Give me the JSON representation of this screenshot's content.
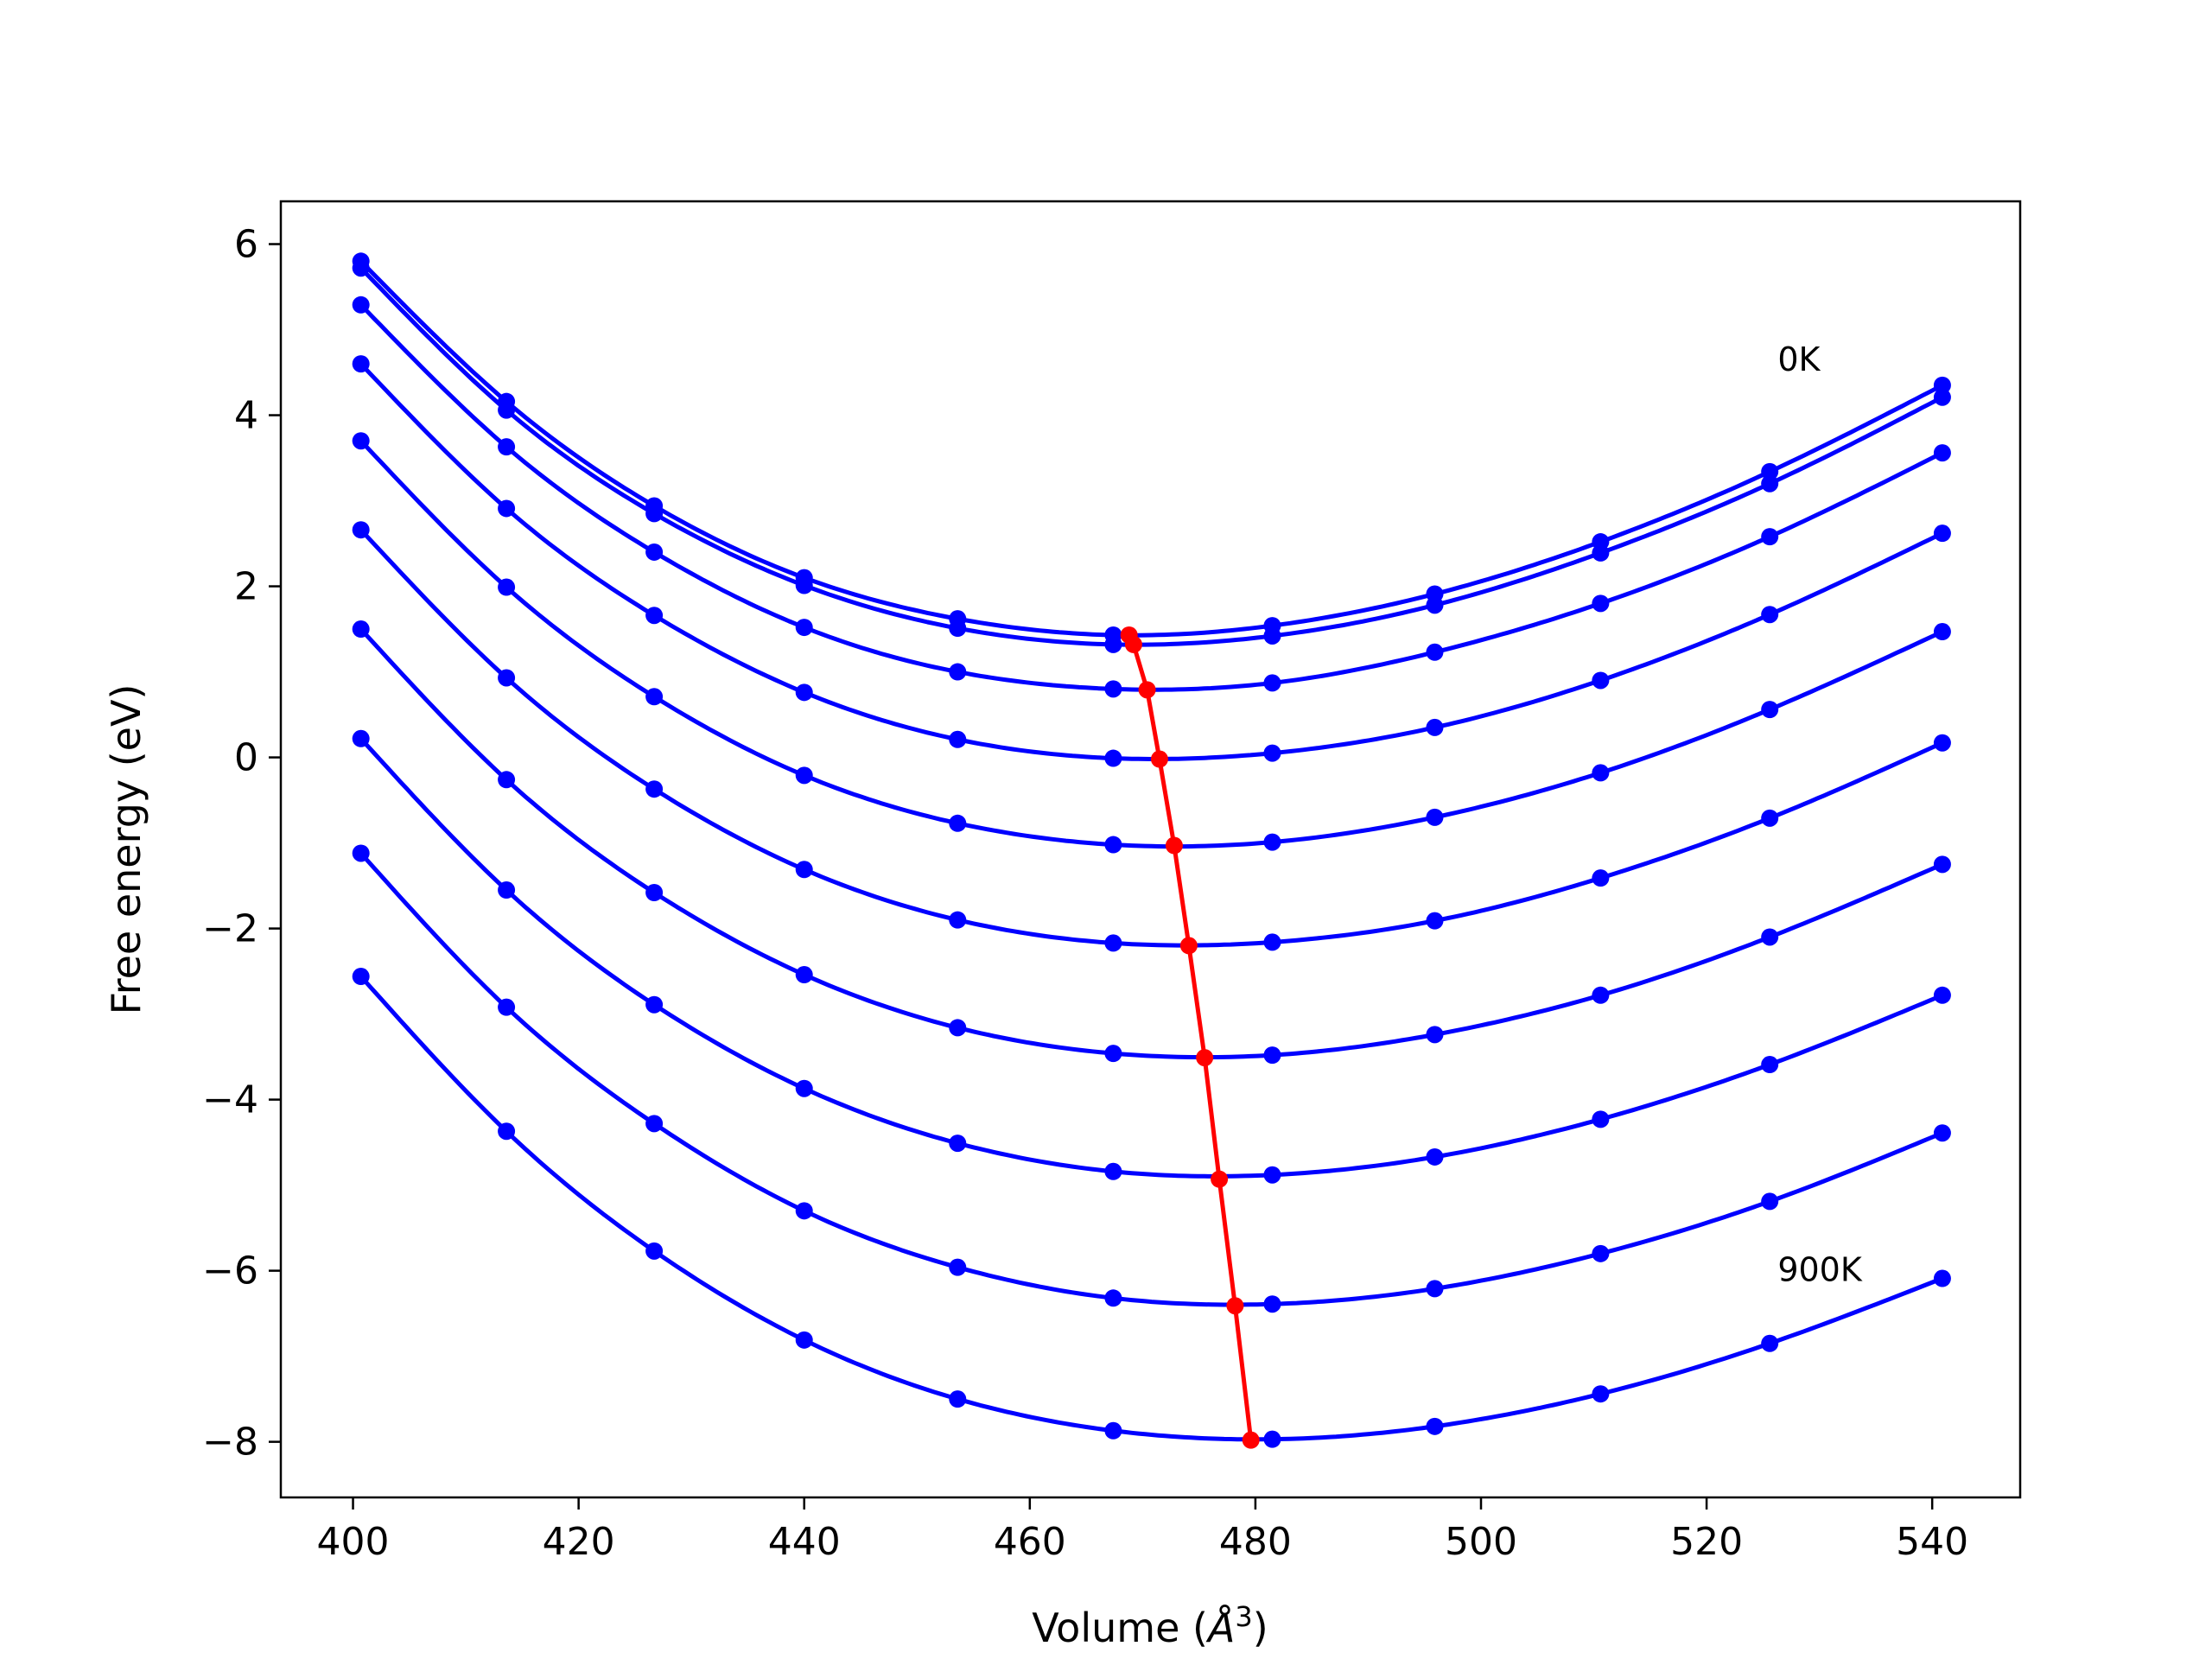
{
  "chart_data": {
    "type": "line",
    "title": "",
    "xlabel": "Volume (",
    "xlabel_symbol": "Å",
    "xlabel_exponent": "3",
    "xlabel_close": ")",
    "ylabel": "Free energy (eV)",
    "xlim": [
      393.6,
      547.8
    ],
    "ylim": [
      -8.65,
      6.5
    ],
    "xticks": [
      400,
      420,
      440,
      460,
      480,
      500,
      520,
      540
    ],
    "xtick_labels": [
      "400",
      "420",
      "440",
      "460",
      "480",
      "500",
      "520",
      "540"
    ],
    "yticks": [
      -8,
      -6,
      -4,
      -2,
      0,
      2,
      4,
      6
    ],
    "ytick_labels": [
      "−8",
      "−6",
      "−4",
      "−2",
      "0",
      "2",
      "4",
      "6"
    ],
    "grid": false,
    "x": [
      400.7,
      413.6,
      426.7,
      440.0,
      453.6,
      467.4,
      481.5,
      495.9,
      510.6,
      525.6,
      540.9
    ],
    "series": [
      {
        "color": "#0000ff",
        "values": [
          5.8,
          4.16,
          2.94,
          2.1,
          1.62,
          1.43,
          1.54,
          1.91,
          2.52,
          3.34,
          4.35
        ]
      },
      {
        "color": "#0000ff",
        "values": [
          5.72,
          4.06,
          2.85,
          2.01,
          1.51,
          1.32,
          1.42,
          1.78,
          2.39,
          3.2,
          4.21
        ]
      },
      {
        "color": "#0000ff",
        "values": [
          5.29,
          3.63,
          2.4,
          1.52,
          1.0,
          0.8,
          0.87,
          1.23,
          1.8,
          2.58,
          3.56
        ]
      },
      {
        "color": "#0000ff",
        "values": [
          4.6,
          2.91,
          1.66,
          0.76,
          0.21,
          -0.01,
          0.05,
          0.35,
          0.9,
          1.67,
          2.62
        ]
      },
      {
        "color": "#0000ff",
        "values": [
          3.7,
          1.99,
          0.71,
          -0.21,
          -0.77,
          -1.02,
          -0.99,
          -0.7,
          -0.18,
          0.56,
          1.47
        ]
      },
      {
        "color": "#0000ff",
        "values": [
          2.66,
          0.93,
          -0.37,
          -1.31,
          -1.9,
          -2.17,
          -2.16,
          -1.91,
          -1.41,
          -0.71,
          0.17
        ]
      },
      {
        "color": "#0000ff",
        "values": [
          1.5,
          -0.26,
          -1.58,
          -2.54,
          -3.16,
          -3.46,
          -3.48,
          -3.24,
          -2.78,
          -2.1,
          -1.25
        ]
      },
      {
        "color": "#0000ff",
        "values": [
          0.22,
          -1.55,
          -2.89,
          -3.87,
          -4.51,
          -4.84,
          -4.88,
          -4.67,
          -4.23,
          -3.59,
          -2.78
        ]
      },
      {
        "color": "#0000ff",
        "values": [
          -1.12,
          -2.92,
          -4.28,
          -5.3,
          -5.96,
          -6.32,
          -6.39,
          -6.21,
          -5.8,
          -5.19,
          -4.39
        ]
      },
      {
        "color": "#0000ff",
        "values": [
          -2.56,
          -4.37,
          -5.77,
          -6.81,
          -7.5,
          -7.87,
          -7.97,
          -7.82,
          -7.44,
          -6.85,
          -6.09
        ]
      }
    ],
    "minimum_line": {
      "color": "#ff0000",
      "x": [
        468.8,
        469.2,
        470.4,
        471.5,
        472.8,
        474.1,
        475.5,
        476.8,
        478.2,
        479.6
      ],
      "y": [
        1.43,
        1.32,
        0.79,
        -0.02,
        -1.03,
        -2.2,
        -3.51,
        -4.93,
        -6.41,
        -7.98
      ]
    },
    "annotations": [
      {
        "text": "0K",
        "x": 526.3,
        "y": 4.52
      },
      {
        "text": "900K",
        "x": 526.3,
        "y": -6.12
      }
    ]
  }
}
